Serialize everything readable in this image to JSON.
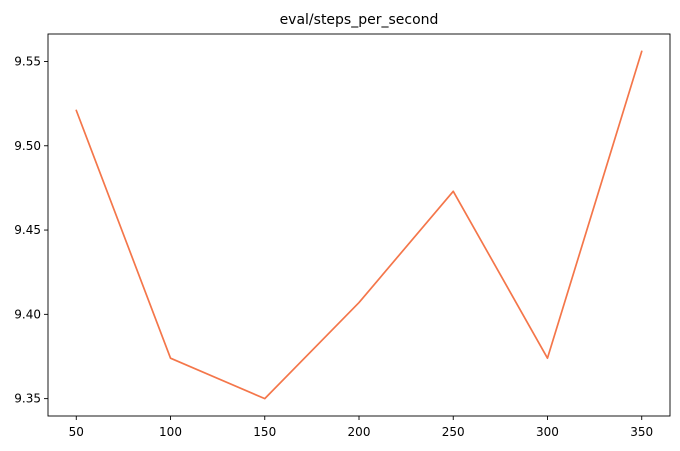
{
  "chart_data": {
    "type": "line",
    "title": "eval/steps_per_second",
    "xlabel": "",
    "ylabel": "",
    "x": [
      50,
      100,
      150,
      200,
      250,
      300,
      350
    ],
    "series": [
      {
        "values": [
          9.521,
          9.374,
          9.35,
          9.407,
          9.473,
          9.374,
          9.556
        ],
        "color": "#f4764a"
      }
    ],
    "xticks": [
      50,
      100,
      150,
      200,
      250,
      300,
      350
    ],
    "xtick_labels": [
      "50",
      "100",
      "150",
      "200",
      "250",
      "300",
      "350"
    ],
    "yticks": [
      9.35,
      9.4,
      9.45,
      9.5,
      9.55
    ],
    "ytick_labels": [
      "9.35",
      "9.40",
      "9.45",
      "9.50",
      "9.55"
    ],
    "xlim": [
      35,
      365
    ],
    "ylim": [
      9.3397,
      9.5663
    ],
    "grid": false,
    "legend": "none"
  }
}
